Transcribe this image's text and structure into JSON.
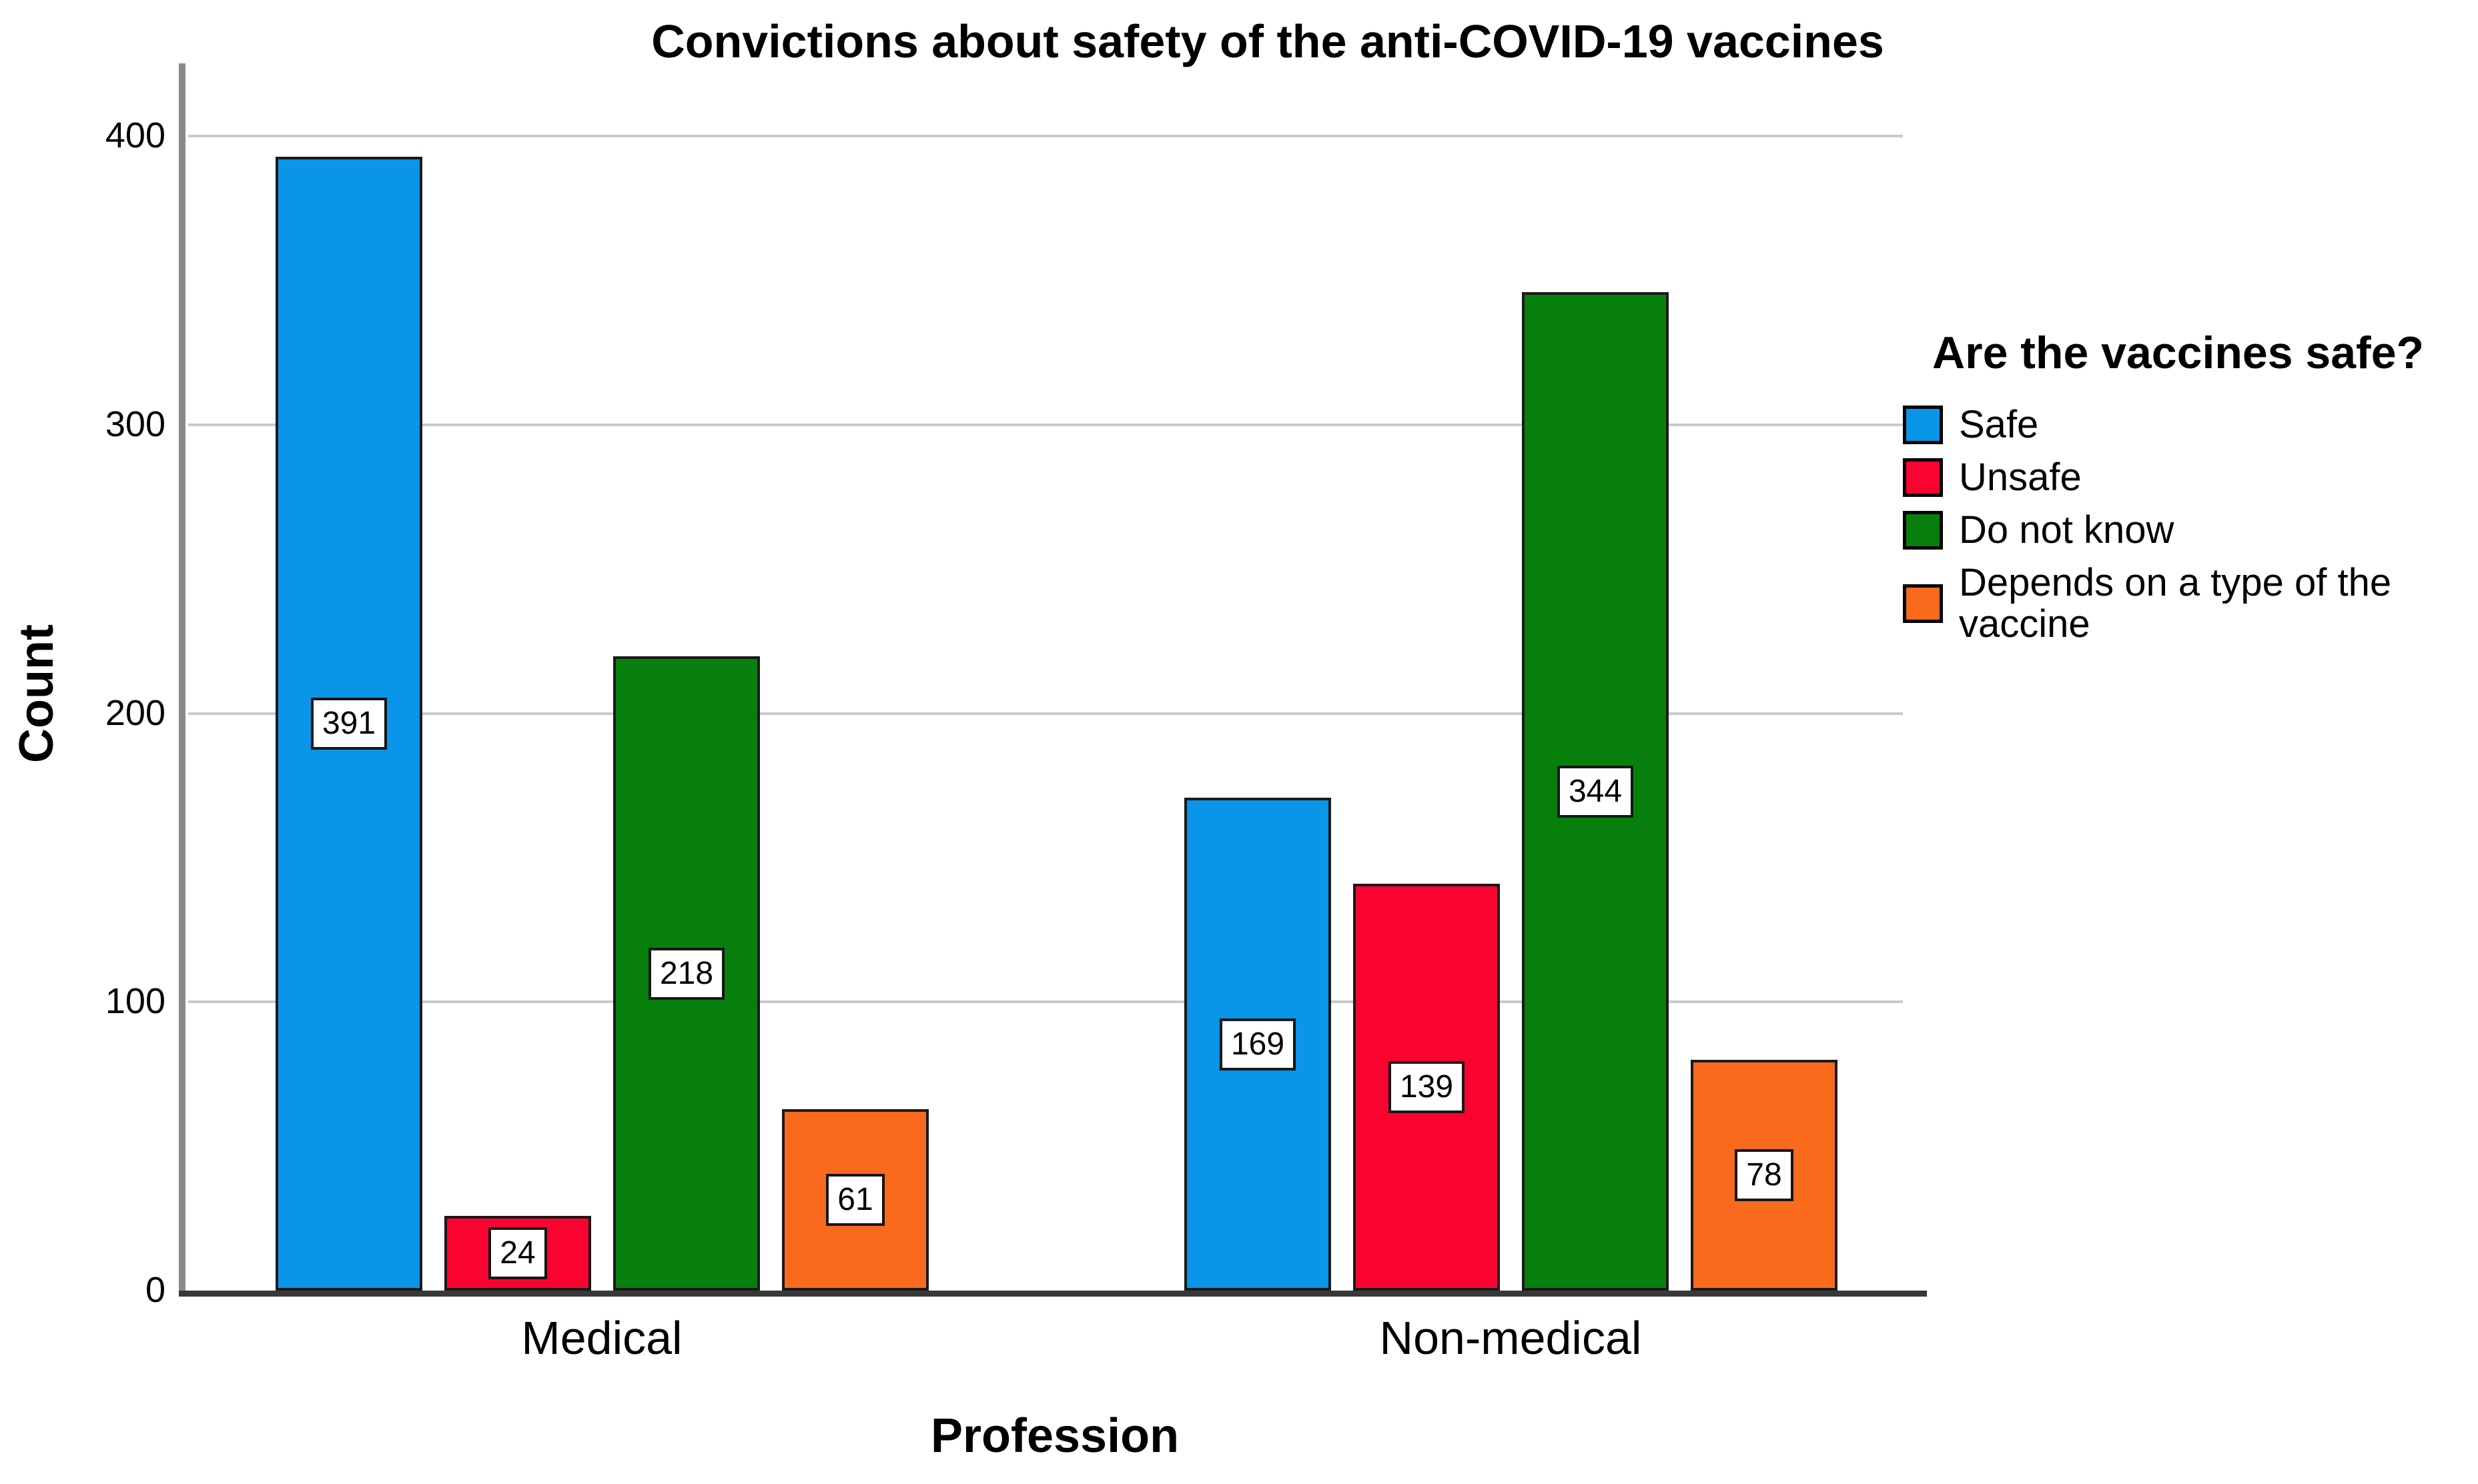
{
  "title": "Convictions about safety of the anti-COVID-19 vaccines",
  "chart_data": {
    "type": "bar",
    "title": "Convictions about safety of the anti-COVID-19 vaccines",
    "categories": [
      "Medical",
      "Non-medical"
    ],
    "series": [
      {
        "name": "Safe",
        "color": "#0995E8",
        "values": [
          391,
          169
        ]
      },
      {
        "name": "Unsafe",
        "color": "#F90431",
        "values": [
          24,
          139
        ]
      },
      {
        "name": "Do not know",
        "color": "#077F0D",
        "values": [
          218,
          344
        ]
      },
      {
        "name": "Depends on a type of the vaccine",
        "color": "#F96A1D",
        "values": [
          61,
          78
        ]
      }
    ],
    "xlabel": "Profession",
    "ylabel": "Count",
    "ylim": [
      0,
      400
    ],
    "yticks": [
      0,
      100,
      200,
      300,
      400
    ],
    "grid": true,
    "bar_value_labels": true,
    "legend_title": "Are the vaccines safe?",
    "legend_position": "right"
  }
}
